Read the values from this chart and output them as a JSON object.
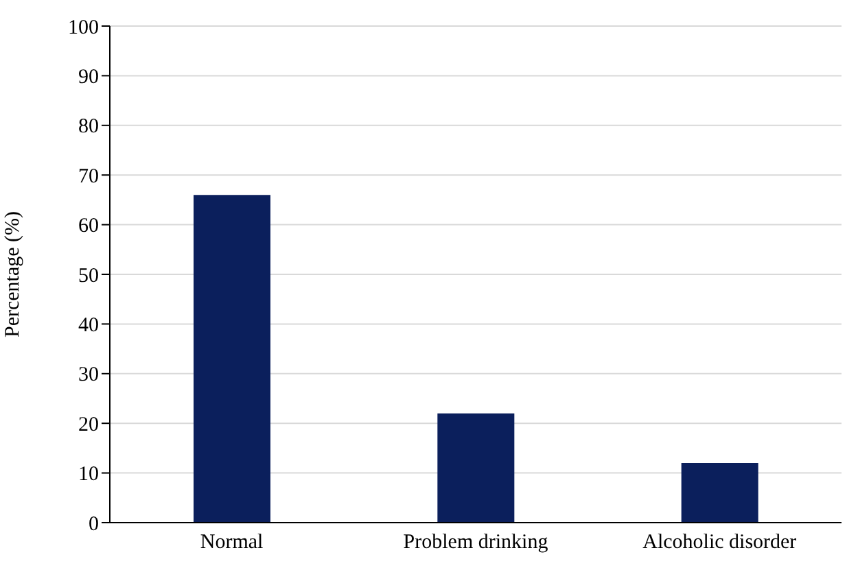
{
  "chart_data": {
    "type": "bar",
    "ylabel": "Percentage (%)",
    "categories": [
      "Normal",
      "Problem drinking",
      "Alcoholic disorder"
    ],
    "values": [
      66,
      22,
      12
    ],
    "color": "#0b1f5c",
    "ylim": [
      0,
      100
    ],
    "yticks": [
      0,
      10,
      20,
      30,
      40,
      50,
      60,
      70,
      80,
      90,
      100
    ],
    "grid": "y",
    "legend": false
  }
}
